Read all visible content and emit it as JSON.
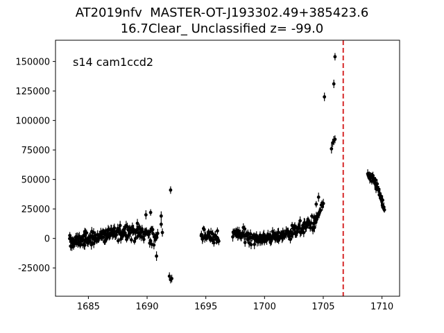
{
  "chart_data": {
    "type": "scatter",
    "title_line1": "AT2019nfv  MASTER-OT-J193302.49+385423.6",
    "title_line2": "16.7Clear_ Unclassified z= -99.0",
    "annotation": "s14 cam1ccd2",
    "xlabel": "",
    "ylabel": "",
    "xlim": [
      1682.2,
      1711.5
    ],
    "ylim": [
      -49000,
      168000
    ],
    "xticks": [
      1685,
      1690,
      1695,
      1700,
      1705,
      1710
    ],
    "yticks": [
      -25000,
      0,
      25000,
      50000,
      75000,
      100000,
      125000,
      150000
    ],
    "vline": {
      "x": 1706.7,
      "color": "#d62728",
      "style": "dashed"
    },
    "marker_color": "#000000",
    "grid": false,
    "segments": [
      {
        "x_start": 1683.4,
        "x_end": 1684.7,
        "y_start": -3000,
        "y_end": -1000,
        "scatter": 4500,
        "count": 38
      },
      {
        "x_start": 1684.7,
        "x_end": 1686.5,
        "y_start": -1000,
        "y_end": 3000,
        "scatter": 5000,
        "count": 48
      },
      {
        "x_start": 1686.5,
        "x_end": 1688.5,
        "y_start": 3000,
        "y_end": 7000,
        "scatter": 5500,
        "count": 50
      },
      {
        "x_start": 1688.5,
        "x_end": 1690.4,
        "y_start": 6000,
        "y_end": 4000,
        "scatter": 6000,
        "count": 42
      },
      {
        "x_start": 1690.4,
        "x_end": 1690.9,
        "y_start": 1000,
        "y_end": -2000,
        "scatter": 6000,
        "count": 10
      },
      {
        "x_start": 1694.6,
        "x_end": 1696.1,
        "y_start": 4000,
        "y_end": 0,
        "scatter": 5000,
        "count": 34
      },
      {
        "x_start": 1697.3,
        "x_end": 1699.2,
        "y_start": 4000,
        "y_end": 1000,
        "scatter": 4500,
        "count": 42
      },
      {
        "x_start": 1699.2,
        "x_end": 1701.2,
        "y_start": 0,
        "y_end": 1000,
        "scatter": 4000,
        "count": 48
      },
      {
        "x_start": 1701.2,
        "x_end": 1703.2,
        "y_start": 2000,
        "y_end": 9000,
        "scatter": 4500,
        "count": 46
      },
      {
        "x_start": 1703.2,
        "x_end": 1704.4,
        "y_start": 9000,
        "y_end": 15000,
        "scatter": 5000,
        "count": 26
      },
      {
        "x_start": 1704.4,
        "x_end": 1705.0,
        "y_start": 15000,
        "y_end": 28000,
        "scatter": 3500,
        "count": 12
      },
      {
        "x_start": 1708.8,
        "x_end": 1709.5,
        "y_start": 54000,
        "y_end": 46000,
        "scatter": 3000,
        "count": 20
      },
      {
        "x_start": 1709.5,
        "x_end": 1710.2,
        "y_start": 46000,
        "y_end": 25000,
        "scatter": 3500,
        "count": 20
      }
    ],
    "points": [
      {
        "x": 1690.8,
        "y": -15000
      },
      {
        "x": 1691.2,
        "y": 19000
      },
      {
        "x": 1691.2,
        "y": 12000
      },
      {
        "x": 1691.3,
        "y": 5000
      },
      {
        "x": 1692.0,
        "y": 41000
      },
      {
        "x": 1691.9,
        "y": -32000
      },
      {
        "x": 1692.0,
        "y": -35000
      },
      {
        "x": 1692.1,
        "y": -34000
      },
      {
        "x": 1690.3,
        "y": 22000
      },
      {
        "x": 1689.9,
        "y": 20000
      },
      {
        "x": 1704.4,
        "y": 29000
      },
      {
        "x": 1704.6,
        "y": 35000
      },
      {
        "x": 1704.9,
        "y": 30000
      },
      {
        "x": 1705.1,
        "y": 120000
      },
      {
        "x": 1705.7,
        "y": 76000
      },
      {
        "x": 1705.8,
        "y": 81000
      },
      {
        "x": 1705.9,
        "y": 83000
      },
      {
        "x": 1706.0,
        "y": 84000
      },
      {
        "x": 1705.9,
        "y": 131000
      },
      {
        "x": 1706.0,
        "y": 154000
      }
    ]
  }
}
